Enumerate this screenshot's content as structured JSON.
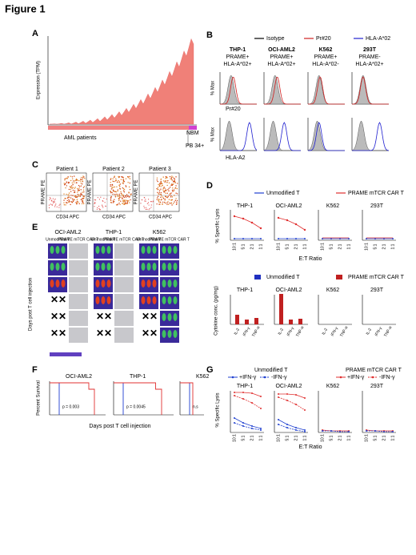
{
  "figure_title": "Figure 1",
  "panels": {
    "A": {
      "label": "A",
      "y_label": "Expression (TPM)",
      "x_label": "AML patients",
      "groups": [
        "NBM",
        "PB 34+"
      ]
    },
    "B": {
      "label": "B",
      "legend": [
        "Isotype",
        "Pr#20",
        "HLA-A*02"
      ],
      "columns": [
        {
          "name": "THP-1",
          "lines": [
            "PRAME+",
            "HLA-A*02+"
          ]
        },
        {
          "name": "OCI-AML2",
          "lines": [
            "PRAME+",
            "HLA-A*02+"
          ]
        },
        {
          "name": "K562",
          "lines": [
            "PRAME+",
            "HLA-A*02-"
          ]
        },
        {
          "name": "293T",
          "lines": [
            "PRAME-",
            "HLA-A*02+"
          ]
        }
      ],
      "y_label": "% Max",
      "row_labels": [
        "Pr#20",
        "HLA-A2"
      ]
    },
    "C": {
      "label": "C",
      "titles": [
        "Patient 1",
        "Patient 2",
        "Patient 3"
      ],
      "y_label": "PRAME PE",
      "x_label": "CD34 APC"
    },
    "D": {
      "label": "D",
      "legend": [
        "Unmodified T",
        "PRAME mTCR CAR T"
      ],
      "titles": [
        "THP-1",
        "OCI-AML2",
        "K562",
        "293T"
      ],
      "lysis_label": "% Specific Lysis",
      "ratios": [
        "10:1",
        "5:1",
        "2:1",
        "1:1"
      ],
      "x_label": "E:T Ratio",
      "cytokine_label": "Cytokine conc. (pg/mg)",
      "cytokines": [
        "IL-2",
        "IFN-γ",
        "TNF-α"
      ]
    },
    "E": {
      "label": "E",
      "titles": [
        "OCI-AML2",
        "THP-1",
        "K562"
      ],
      "groups": [
        "Unmodified T",
        "PRAME mTCR CAR T"
      ],
      "y_label": "Days post T cell injection"
    },
    "F": {
      "label": "F",
      "titles": [
        "OCI-AML2",
        "THP-1",
        "K562"
      ],
      "p_values": [
        "p = 0.003",
        "p = 0.0045",
        "n.s"
      ],
      "y_label": "Percent Survival",
      "x_label": "Days post T cell injection"
    },
    "G": {
      "label": "G",
      "groups": [
        "Unmodified T",
        "PRAME mTCR CAR T"
      ],
      "conditions": [
        "+IFN-γ",
        "-IFN-γ"
      ],
      "titles": [
        "THP-1",
        "OCI-AML2",
        "K562",
        "293T"
      ],
      "y_label": "% Specific Lysis",
      "x_label": "E:T Ratio"
    }
  }
}
